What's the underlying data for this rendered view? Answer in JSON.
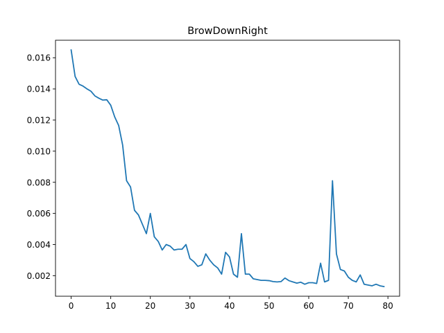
{
  "chart_data": {
    "type": "line",
    "title": "BrowDownRight",
    "xlabel": "",
    "ylabel": "",
    "xlim": [
      -3.95,
      82.95
    ],
    "ylim": [
      0.00068,
      0.017125
    ],
    "xticks": [
      0,
      10,
      20,
      30,
      40,
      50,
      60,
      70,
      80
    ],
    "yticks": [
      0.002,
      0.004,
      0.006,
      0.008,
      0.01,
      0.012,
      0.014,
      0.016
    ],
    "ytick_labels": [
      "0.002",
      "0.004",
      "0.006",
      "0.008",
      "0.010",
      "0.012",
      "0.014",
      "0.016"
    ],
    "grid": false,
    "line_color": "#1f77b4",
    "x": [
      0,
      1,
      2,
      3,
      4,
      5,
      6,
      7,
      8,
      9,
      10,
      11,
      12,
      13,
      14,
      15,
      16,
      17,
      18,
      19,
      20,
      21,
      22,
      23,
      24,
      25,
      26,
      27,
      28,
      29,
      30,
      31,
      32,
      33,
      34,
      35,
      36,
      37,
      38,
      39,
      40,
      41,
      42,
      43,
      44,
      45,
      46,
      47,
      48,
      49,
      50,
      51,
      52,
      53,
      54,
      55,
      56,
      57,
      58,
      59,
      60,
      61,
      62,
      63,
      64,
      65,
      66,
      67,
      68,
      69,
      70,
      71,
      72,
      73,
      74,
      75,
      76,
      77,
      78,
      79
    ],
    "y": [
      0.0165,
      0.0148,
      0.0143,
      0.01418,
      0.014,
      0.01385,
      0.01355,
      0.0134,
      0.01328,
      0.0133,
      0.01295,
      0.0122,
      0.01165,
      0.0104,
      0.0081,
      0.0077,
      0.0062,
      0.0059,
      0.0053,
      0.0047,
      0.006,
      0.0045,
      0.0042,
      0.00365,
      0.004,
      0.0039,
      0.00365,
      0.0037,
      0.0037,
      0.004,
      0.0031,
      0.0029,
      0.0026,
      0.0027,
      0.0034,
      0.003,
      0.0027,
      0.0025,
      0.0021,
      0.0035,
      0.0032,
      0.0021,
      0.0019,
      0.0047,
      0.0021,
      0.0021,
      0.0018,
      0.00175,
      0.0017,
      0.0017,
      0.00168,
      0.00162,
      0.0016,
      0.00162,
      0.00185,
      0.00168,
      0.0016,
      0.00152,
      0.00158,
      0.00145,
      0.00155,
      0.00155,
      0.0015,
      0.0028,
      0.0016,
      0.0017,
      0.0081,
      0.0034,
      0.0024,
      0.0023,
      0.0019,
      0.0017,
      0.0016,
      0.00205,
      0.00145,
      0.0014,
      0.00135,
      0.00145,
      0.00135,
      0.0013
    ]
  }
}
